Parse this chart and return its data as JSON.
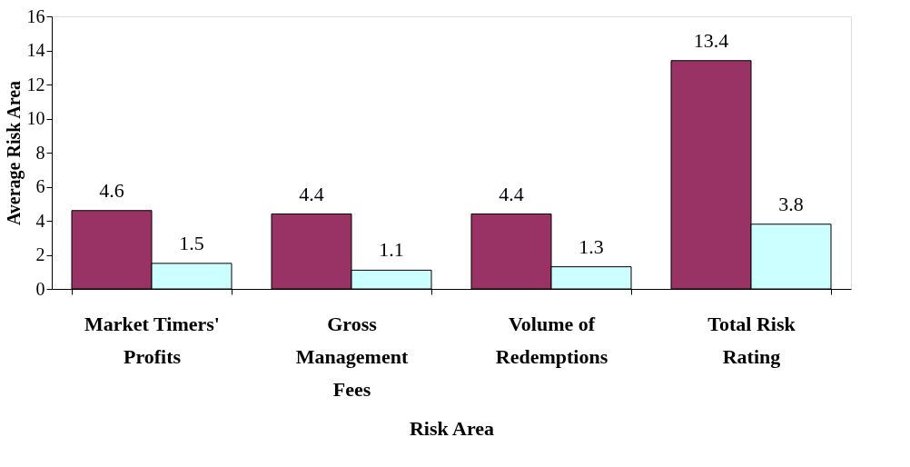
{
  "chart_data": {
    "type": "bar",
    "xlabel": "Risk Area",
    "ylabel": "Average Risk Area",
    "categories": [
      "Market Timers' Profits",
      "Gross Management Fees",
      "Volume of Redemptions",
      "Total Risk Rating"
    ],
    "series": [
      {
        "color": "#993366",
        "values": [
          4.6,
          4.4,
          4.4,
          13.4
        ]
      },
      {
        "color": "#ccffff",
        "values": [
          1.5,
          1.1,
          1.3,
          3.8
        ]
      }
    ],
    "ylim": [
      0,
      16
    ],
    "yticks": [
      0,
      2,
      4,
      6,
      8,
      10,
      12,
      14,
      16
    ],
    "data_labels": true,
    "grid": false
  }
}
